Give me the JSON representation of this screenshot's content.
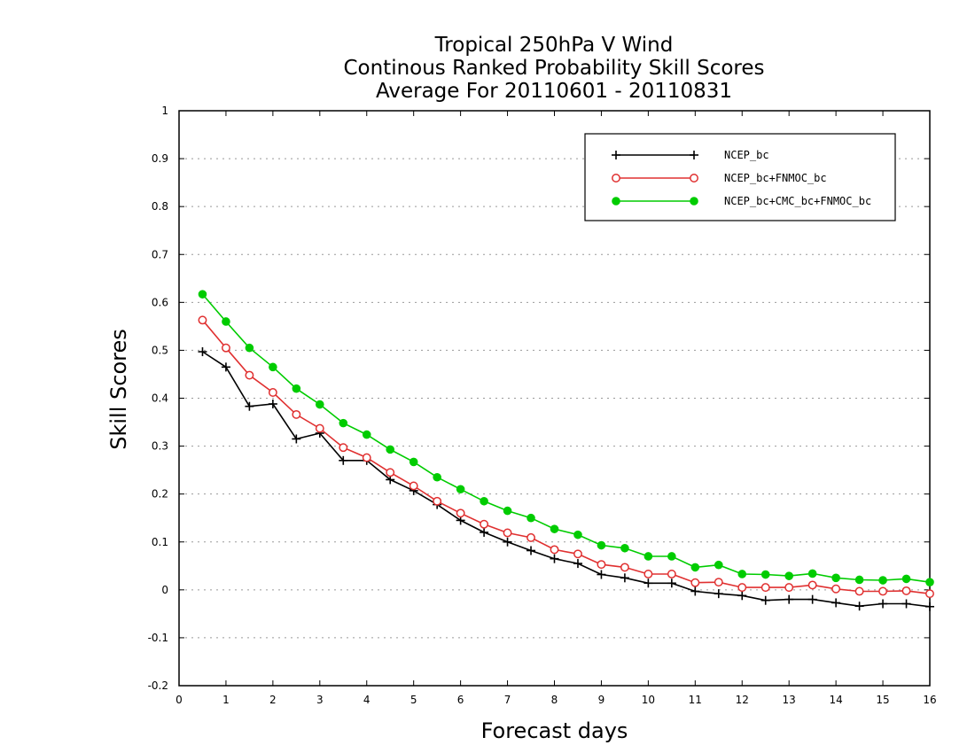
{
  "chart_data": {
    "type": "line",
    "title_lines": [
      "Tropical 250hPa V Wind",
      "Continous Ranked Probability Skill Scores",
      "Average For 20110601 - 20110831"
    ],
    "xlabel": "Forecast days",
    "ylabel": "Skill Scores",
    "xlim": [
      0,
      16
    ],
    "ylim": [
      -0.2,
      1
    ],
    "xticks": [
      0,
      1,
      2,
      3,
      4,
      5,
      6,
      7,
      8,
      9,
      10,
      11,
      12,
      13,
      14,
      15,
      16
    ],
    "yticks": [
      -0.2,
      -0.1,
      0,
      0.1,
      0.2,
      0.3,
      0.4,
      0.5,
      0.6,
      0.7,
      0.8,
      0.9,
      1
    ],
    "ytick_labels": [
      "-0.2",
      "-0.1",
      "0",
      "0.1",
      "0.2",
      "0.3",
      "0.4",
      "0.5",
      "0.6",
      "0.7",
      "0.8",
      "0.9",
      "1"
    ],
    "grid": "horizontal dotted",
    "legend_position": "top-right",
    "x": [
      0.5,
      1,
      1.5,
      2,
      2.5,
      3,
      3.5,
      4,
      4.5,
      5,
      5.5,
      6,
      6.5,
      7,
      7.5,
      8,
      8.5,
      9,
      9.5,
      10,
      10.5,
      11,
      11.5,
      12,
      12.5,
      13,
      13.5,
      14,
      14.5,
      15,
      15.5,
      16
    ],
    "series": [
      {
        "name": "NCEP_bc",
        "color": "#000000",
        "marker": "plus",
        "values": [
          0.497,
          0.465,
          0.383,
          0.388,
          0.315,
          0.327,
          0.27,
          0.27,
          0.23,
          0.207,
          0.178,
          0.145,
          0.12,
          0.1,
          0.082,
          0.065,
          0.055,
          0.032,
          0.025,
          0.014,
          0.014,
          -0.003,
          -0.008,
          -0.012,
          -0.022,
          -0.02,
          -0.02,
          -0.027,
          -0.034,
          -0.029,
          -0.029,
          -0.035
        ]
      },
      {
        "name": "NCEP_bc+FNMOC_bc",
        "color": "#e03030",
        "marker": "open-circle",
        "values": [
          0.563,
          0.505,
          0.448,
          0.412,
          0.366,
          0.337,
          0.297,
          0.276,
          0.245,
          0.217,
          0.185,
          0.16,
          0.137,
          0.119,
          0.109,
          0.084,
          0.075,
          0.053,
          0.047,
          0.033,
          0.033,
          0.015,
          0.016,
          0.005,
          0.005,
          0.005,
          0.01,
          0.002,
          -0.003,
          -0.003,
          -0.002,
          -0.008
        ]
      },
      {
        "name": "NCEP_bc+CMC_bc+FNMOC_bc",
        "color": "#00cc00",
        "marker": "filled-circle",
        "values": [
          0.617,
          0.56,
          0.505,
          0.465,
          0.42,
          0.387,
          0.348,
          0.324,
          0.293,
          0.267,
          0.235,
          0.21,
          0.185,
          0.165,
          0.15,
          0.127,
          0.115,
          0.093,
          0.087,
          0.07,
          0.07,
          0.047,
          0.052,
          0.033,
          0.032,
          0.029,
          0.034,
          0.025,
          0.021,
          0.02,
          0.023,
          0.016
        ]
      }
    ]
  }
}
